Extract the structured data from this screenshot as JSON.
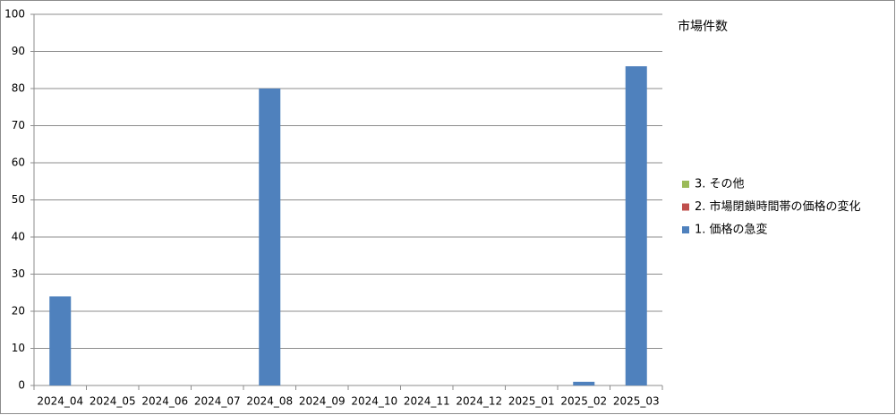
{
  "chart_data": {
    "type": "bar",
    "stacked": true,
    "legend_title": "市場件数",
    "categories": [
      "2024_04",
      "2024_05",
      "2024_06",
      "2024_07",
      "2024_08",
      "2024_09",
      "2024_10",
      "2024_11",
      "2024_12",
      "2025_01",
      "2025_02",
      "2025_03"
    ],
    "series": [
      {
        "name": "1. 価格の急変",
        "color": "#4f81bd",
        "values": [
          24,
          0,
          0,
          0,
          80,
          0,
          0,
          0,
          0,
          0,
          1,
          86
        ]
      },
      {
        "name": "2. 市場閉鎖時間帯の価格の変化",
        "color": "#c0504d",
        "values": [
          0,
          0,
          0,
          0,
          0,
          0,
          0,
          0,
          0,
          0,
          0,
          0
        ]
      },
      {
        "name": "3. その他",
        "color": "#9bbb59",
        "values": [
          0,
          0,
          0,
          0,
          0,
          0,
          0,
          0,
          0,
          0,
          0,
          0
        ]
      }
    ],
    "ylim": [
      0,
      100
    ],
    "yticks": [
      0,
      10,
      20,
      30,
      40,
      50,
      60,
      70,
      80,
      90,
      100
    ],
    "grid": true,
    "legend": "right"
  }
}
